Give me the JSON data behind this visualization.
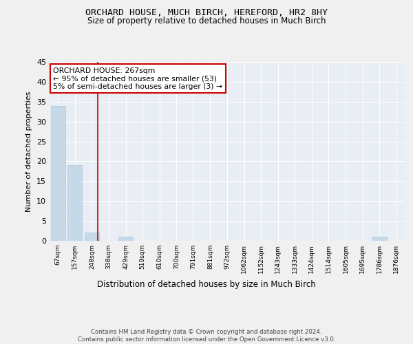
{
  "title": "ORCHARD HOUSE, MUCH BIRCH, HEREFORD, HR2 8HY",
  "subtitle": "Size of property relative to detached houses in Much Birch",
  "xlabel": "Distribution of detached houses by size in Much Birch",
  "ylabel": "Number of detached properties",
  "bar_labels": [
    "67sqm",
    "157sqm",
    "248sqm",
    "338sqm",
    "429sqm",
    "519sqm",
    "610sqm",
    "700sqm",
    "791sqm",
    "881sqm",
    "972sqm",
    "1062sqm",
    "1152sqm",
    "1243sqm",
    "1333sqm",
    "1424sqm",
    "1514sqm",
    "1605sqm",
    "1695sqm",
    "1786sqm",
    "1876sqm"
  ],
  "bar_values": [
    34,
    19,
    2,
    0,
    1,
    0,
    0,
    0,
    0,
    0,
    0,
    0,
    0,
    0,
    0,
    0,
    0,
    0,
    0,
    1,
    0
  ],
  "bar_color": "#c5d9e8",
  "bar_edgecolor": "#aec6d9",
  "annotation_text": "ORCHARD HOUSE: 267sqm\n← 95% of detached houses are smaller (53)\n5% of semi-detached houses are larger (3) →",
  "annotation_box_color": "#ffffff",
  "annotation_box_edgecolor": "#cc0000",
  "vline_x": 2.33,
  "vline_color": "#cc0000",
  "ylim": [
    0,
    45
  ],
  "yticks": [
    0,
    5,
    10,
    15,
    20,
    25,
    30,
    35,
    40,
    45
  ],
  "bg_color": "#f0f0f0",
  "plot_bg_color": "#e8eef4",
  "footer": "Contains HM Land Registry data © Crown copyright and database right 2024.\nContains public sector information licensed under the Open Government Licence v3.0.",
  "title_fontsize": 9.5,
  "subtitle_fontsize": 8.5,
  "label_fontsize": 8
}
